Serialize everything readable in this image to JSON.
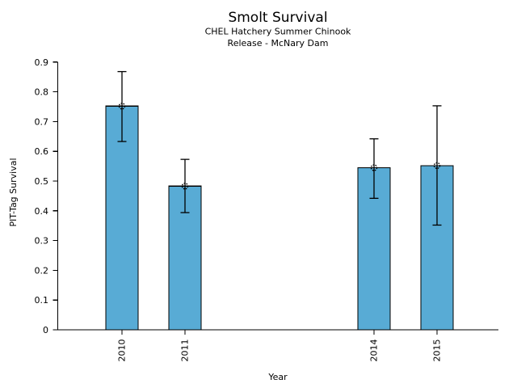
{
  "chart_data": {
    "type": "bar",
    "title": "Smolt Survival",
    "subtitle1": "CHEL Hatchery Summer Chinook",
    "subtitle2": "Release - McNary Dam",
    "xlabel": "Year",
    "ylabel": "PIT-Tag Survival",
    "categories": [
      "2010",
      "2011",
      "2014",
      "2015"
    ],
    "x_years": [
      2010,
      2011,
      2014,
      2015
    ],
    "values": [
      0.752,
      0.483,
      0.545,
      0.552
    ],
    "error_low": [
      0.633,
      0.394,
      0.442,
      0.352
    ],
    "error_high": [
      0.868,
      0.573,
      0.642,
      0.753
    ],
    "ylim": [
      0,
      0.9
    ],
    "yticks": [
      0,
      0.1,
      0.2,
      0.3,
      0.4,
      0.5,
      0.6,
      0.7,
      0.8,
      0.9
    ],
    "ytick_labels": [
      "0",
      "0.1",
      "0.2",
      "0.3",
      "0.4",
      "0.5",
      "0.6",
      "0.7",
      "0.8",
      "0.9"
    ],
    "x_tick_rotation_deg": -90,
    "grid": false,
    "legend": null,
    "bar_color": "#58ABD5",
    "bar_edge_color": "#000000",
    "errorbar_color": "#000000",
    "marker": "dotted-open-circle"
  }
}
